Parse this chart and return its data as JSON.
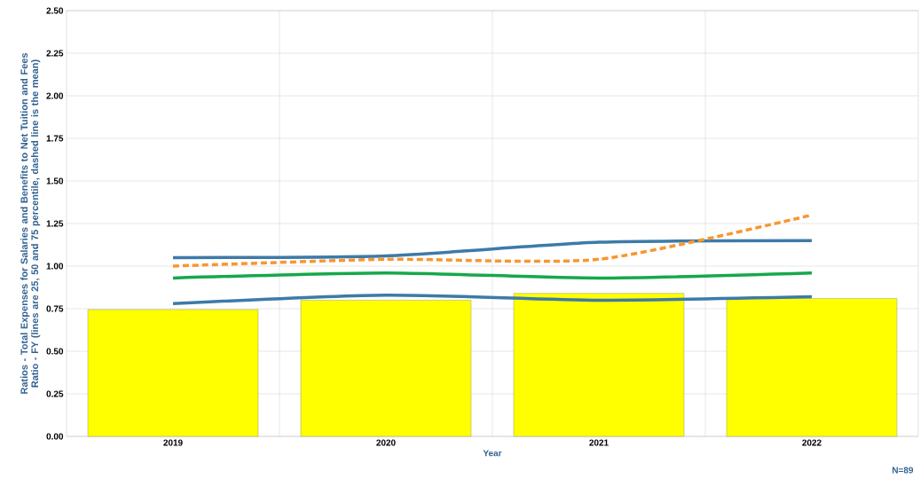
{
  "chart_data": {
    "type": "bar",
    "ylabel": "Ratios - Total Expenses for Salaries and Benefits to Net Tuition and Fees Ratio - FY (lines are 25, 50 and 75 percentile, dashed line is the mean)",
    "xlabel": "Year",
    "annotations": [
      "N=89"
    ],
    "categories": [
      "2019",
      "2020",
      "2021",
      "2022"
    ],
    "ylim": [
      0,
      2.5
    ],
    "yticks": [
      {
        "value": 0,
        "label": "0.00"
      },
      {
        "value": 0.25,
        "label": "0.25"
      },
      {
        "value": 0.5,
        "label": "0.50"
      },
      {
        "value": 0.75,
        "label": "0.75"
      },
      {
        "value": 1,
        "label": "1.00"
      },
      {
        "value": 1.25,
        "label": "1.25"
      },
      {
        "value": 1.5,
        "label": "1.50"
      },
      {
        "value": 1.75,
        "label": "1.75"
      },
      {
        "value": 2,
        "label": "2.00"
      },
      {
        "value": 2.25,
        "label": "2.25"
      },
      {
        "value": 2.5,
        "label": "2.50"
      }
    ],
    "grid": true,
    "series": [
      {
        "color": "#ffff00",
        "values": [
          0.745,
          0.8,
          0.84,
          0.81
        ]
      },
      {
        "type": "line",
        "color": "#3d7aa8",
        "line_style": "solid",
        "values": [
          1.05,
          1.06,
          1.14,
          1.15
        ]
      },
      {
        "type": "line",
        "color": "#f7972f",
        "line_style": "dashed",
        "values": [
          1.0,
          1.04,
          1.04,
          1.3
        ]
      },
      {
        "type": "line",
        "color": "#16a84a",
        "line_style": "solid",
        "values": [
          0.93,
          0.96,
          0.93,
          0.96
        ]
      },
      {
        "type": "line",
        "color": "#3d7aa8",
        "line_style": "solid",
        "values": [
          0.78,
          0.83,
          0.8,
          0.82
        ]
      }
    ]
  }
}
